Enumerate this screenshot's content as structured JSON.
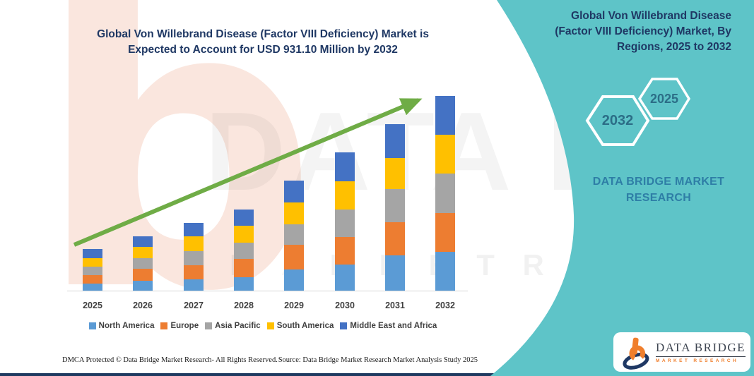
{
  "page": {
    "main_title_line1": "Global Von Willebrand Disease (Factor VIII Deficiency) Market is",
    "main_title_line2": "Expected to Account for USD 931.10 Million by 2032"
  },
  "chart_data": {
    "type": "bar",
    "stacked": true,
    "unit": "USD Million",
    "title": "Global Von Willebrand Disease (Factor VIII Deficiency) Market is Expected to Account for USD 931.10 Million by 2032",
    "stated_value": "USD 931.10 Million by 2032",
    "categories": [
      "2025",
      "2026",
      "2027",
      "2028",
      "2029",
      "2030",
      "2031",
      "2032"
    ],
    "series": [
      {
        "name": "North America",
        "color": "#5B9BD5",
        "values": [
          34,
          47,
          54,
          64,
          101,
          125,
          169,
          186.2
        ]
      },
      {
        "name": "Europe",
        "color": "#ED7D31",
        "values": [
          40,
          57,
          67,
          88,
          118,
          132,
          159,
          186.2
        ]
      },
      {
        "name": "Asia Pacific",
        "color": "#A5A5A5",
        "values": [
          40,
          51,
          67,
          78,
          98,
          132,
          159,
          186.2
        ]
      },
      {
        "name": "South America",
        "color": "#FFC000",
        "values": [
          40,
          54,
          71,
          81,
          105,
          135,
          148,
          186.2
        ]
      },
      {
        "name": "Middle East and Africa",
        "color": "#4472C4",
        "values": [
          44,
          51,
          64,
          78,
          105,
          138,
          162,
          186.3
        ]
      }
    ],
    "totals_estimated": [
      198,
      260,
      323,
      389,
      527,
      662,
      797,
      931.1
    ],
    "legend_position": "bottom",
    "gridlines": false,
    "y_axis_shown": false,
    "trend_arrow_color": "#6FAC46"
  },
  "sidebar": {
    "title": "Global Von Willebrand Disease (Factor VIII Deficiency) Market, By Regions, 2025 to 2032",
    "hexagon_back_label": "2032",
    "hexagon_front_label": "2025",
    "brand_line1": "DATA BRIDGE MARKET",
    "brand_line2": "RESEARCH",
    "background_color": "#5EC4C8"
  },
  "logo": {
    "name_line": "DATA BRIDGE",
    "sub_line": "MARKET RESEARCH"
  },
  "watermark": {
    "letter": "b",
    "big_text": "DATA BRIDGE",
    "sub_text": "M A R K E T   R E S E A R C H"
  },
  "footer": {
    "left_text": "DMCA Protected © Data Bridge Market Research-  All Rights Reserved.",
    "right_text": "Source: Data Bridge Market Research  Market Analysis Study 2025"
  }
}
